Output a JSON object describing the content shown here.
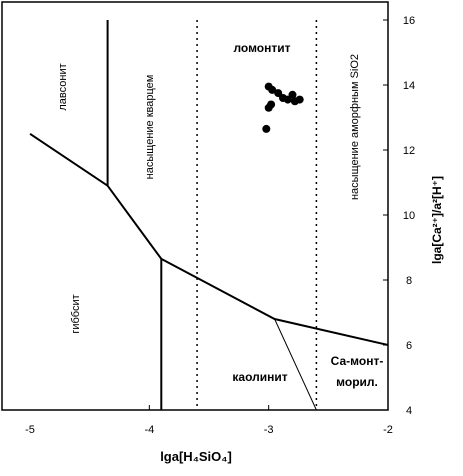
{
  "chart_data": {
    "type": "scatter",
    "xlabel": "lga[H₄SiO₄]",
    "ylabel": "lga[Ca²⁺]/a²[H⁺]",
    "xlim": [
      -5,
      -2
    ],
    "ylim": [
      4,
      16
    ],
    "x_ticks": [
      "-5",
      "-4",
      "-3",
      "-2"
    ],
    "y_ticks": [
      "4",
      "6",
      "8",
      "10",
      "12",
      "14",
      "16"
    ],
    "boundaries": [
      {
        "name": "lawsonite-gibbsite",
        "points": [
          [
            -5.0,
            12.5
          ],
          [
            -4.35,
            10.9
          ],
          [
            -3.9,
            8.65
          ],
          [
            -2.95,
            6.8
          ],
          [
            -2.0,
            6.0
          ]
        ]
      },
      {
        "name": "lawsonite-laumontite",
        "points": [
          [
            -4.35,
            10.9
          ],
          [
            -4.35,
            16.0
          ]
        ]
      },
      {
        "name": "gibbsite-kaolinite",
        "points": [
          [
            -3.9,
            8.65
          ],
          [
            -3.9,
            4.0
          ]
        ]
      },
      {
        "name": "kaolinite-Ca-montmorillonite",
        "points": [
          [
            -2.95,
            6.8
          ],
          [
            -2.6,
            4.0
          ]
        ]
      }
    ],
    "saturation_lines": [
      {
        "name": "quartz saturation",
        "x": -3.6
      },
      {
        "name": "amorphous SiO2 saturation",
        "x": -2.6
      }
    ],
    "points": [
      {
        "x": -3.0,
        "y": 13.95
      },
      {
        "x": -2.97,
        "y": 13.85
      },
      {
        "x": -2.92,
        "y": 13.75
      },
      {
        "x": -2.88,
        "y": 13.6
      },
      {
        "x": -2.84,
        "y": 13.55
      },
      {
        "x": -2.8,
        "y": 13.7
      },
      {
        "x": -2.78,
        "y": 13.5
      },
      {
        "x": -2.74,
        "y": 13.55
      },
      {
        "x": -3.0,
        "y": 13.3
      },
      {
        "x": -2.98,
        "y": 13.4
      },
      {
        "x": -3.02,
        "y": 12.65
      }
    ],
    "field_labels": {
      "lawsonite": "лавсонит",
      "quartz": "насыщение кварцем",
      "laumontite": "ломонтит",
      "amorphous": "насыщение аморфным SiO2",
      "gibbsite": "гиббсит",
      "kaolinite": "каолинит",
      "ca_mont_1": "Са-монт-",
      "ca_mont_2": "морил."
    }
  }
}
